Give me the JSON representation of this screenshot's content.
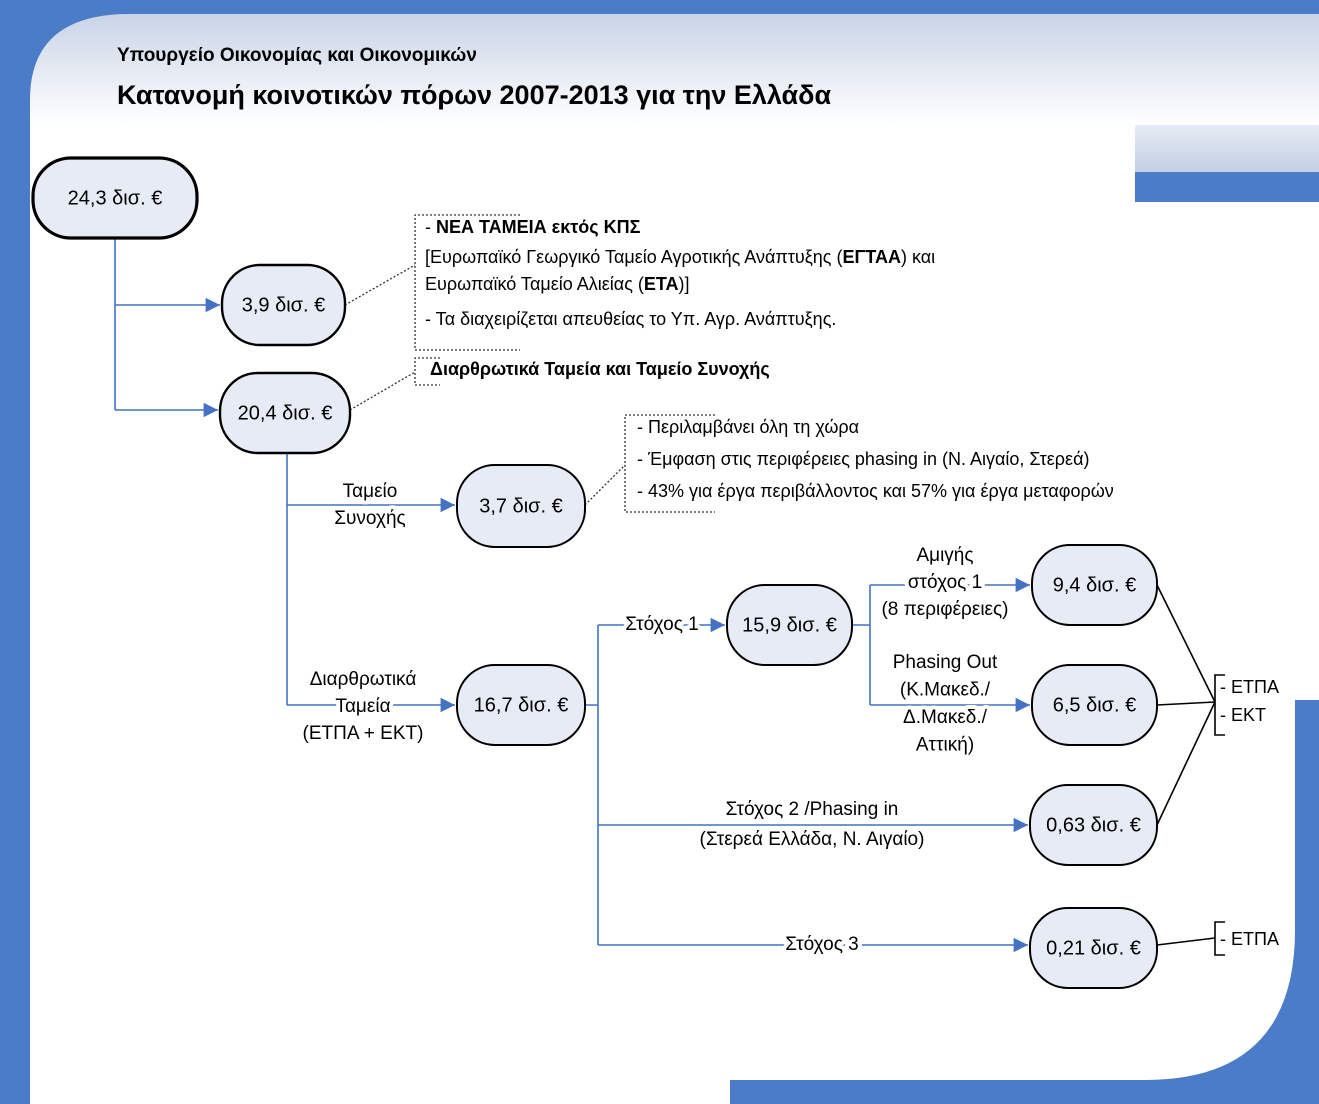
{
  "header": {
    "subtitle": "Υπουργείο Οικονομίας και Οικονομικών",
    "title": "Κατανομή κοινοτικών πόρων 2007-2013 για την Ελλάδα"
  },
  "nodes": [
    {
      "label": "24,3 δισ. €"
    },
    {
      "label": "3,9 δισ. €"
    },
    {
      "label": "20,4 δισ. €"
    },
    {
      "label": "3,7 δισ. €"
    },
    {
      "label": "16,7 δισ. €"
    },
    {
      "label": "15,9 δισ. €"
    },
    {
      "label": "9,4 δισ. €"
    },
    {
      "label": "6,5 δισ. €"
    },
    {
      "label": "0,63 δισ. €"
    },
    {
      "label": "0,21 δισ. €"
    }
  ],
  "edge_labels": [
    {
      "lines": [
        "Ταμείο",
        "Συνοχής"
      ]
    },
    {
      "lines": [
        "Διαρθρωτικά",
        "Ταμεία",
        "(ΕΤΠΑ + ΕΚΤ)"
      ]
    },
    {
      "lines": [
        "Στόχος 1"
      ]
    },
    {
      "lines": [
        "Αμιγής",
        "στόχος 1",
        "(8 περιφέρειες)"
      ]
    },
    {
      "lines": [
        "Phasing Out",
        "(Κ.Μακεδ./",
        "Δ.Μακεδ./",
        "Αττική)"
      ]
    },
    {
      "lines": [
        "Στόχος 2 /Phasing in",
        "(Στερεά Ελλάδα, Ν. Αιγαίο)"
      ]
    },
    {
      "lines": [
        "Στόχος 3"
      ]
    }
  ],
  "notes": [
    {
      "lines": [
        [
          {
            "text": "- ",
            "bold": false
          },
          {
            "text": "ΝΕΑ ΤΑΜΕΙΑ εκτός ΚΠΣ",
            "bold": true
          }
        ],
        [
          {
            "text": "[Ευρωπαϊκό Γεωργικό Ταμείο Αγροτικής Ανάπτυξης (",
            "bold": false
          },
          {
            "text": "ΕΓΤΑΑ",
            "bold": true
          },
          {
            "text": ") και",
            "bold": false
          }
        ],
        [
          {
            "text": "Ευρωπαϊκό Ταμείο Αλιείας (",
            "bold": false
          },
          {
            "text": "ΕΤΑ",
            "bold": true
          },
          {
            "text": ")]",
            "bold": false
          }
        ],
        [
          {
            "text": "- Τα διαχειρίζεται απευθείας το Υπ. Αγρ. Ανάπτυξης.",
            "bold": false
          }
        ]
      ]
    },
    {
      "lines": [
        [
          {
            "text": "Διαρθρωτικά Ταμεία και Ταμείο Συνοχής",
            "bold": true
          }
        ]
      ]
    },
    {
      "lines": [
        [
          {
            "text": "- Περιλαμβάνει όλη τη χώρα",
            "bold": false
          }
        ],
        [
          {
            "text": "- Έμφαση στις περιφέρειες phasing in (Ν. Αιγαίο, Στερεά)",
            "bold": false
          }
        ],
        [
          {
            "text": "- 43% για έργα περιβάλλοντος και 57% για έργα μεταφορών",
            "bold": false
          }
        ]
      ]
    }
  ],
  "fund_labels": [
    {
      "lines": [
        "- ΕΤΠΑ",
        "- ΕΚΤ"
      ]
    },
    {
      "lines": [
        "- ΕΤΠΑ"
      ]
    }
  ]
}
